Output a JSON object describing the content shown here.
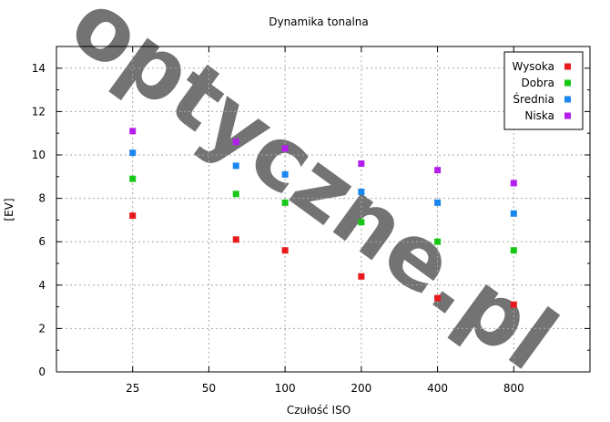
{
  "chart_data": {
    "type": "scatter",
    "title": "Dynamika tonalna",
    "xlabel": "Czułość ISO",
    "ylabel": "[EV]",
    "watermark": "optyczne.pl",
    "x_ticks": [
      25,
      50,
      100,
      200,
      400,
      800
    ],
    "x_scale": "log2",
    "xlim": [
      12.5,
      1600
    ],
    "ylim": [
      0,
      15
    ],
    "y_ticks": [
      0,
      2,
      4,
      6,
      8,
      10,
      12,
      14
    ],
    "grid": true,
    "legend_position": "top-right",
    "series": [
      {
        "name": "Wysoka",
        "color": "#e8191c",
        "points": [
          [
            25,
            7.2
          ],
          [
            64,
            6.1
          ],
          [
            100,
            5.6
          ],
          [
            200,
            4.4
          ],
          [
            400,
            3.4
          ],
          [
            800,
            3.1
          ]
        ]
      },
      {
        "name": "Dobra",
        "color": "#16c716",
        "points": [
          [
            25,
            8.9
          ],
          [
            64,
            8.2
          ],
          [
            100,
            7.8
          ],
          [
            200,
            6.9
          ],
          [
            400,
            6.0
          ],
          [
            800,
            5.6
          ]
        ]
      },
      {
        "name": "Średnia",
        "color": "#1a86f0",
        "points": [
          [
            25,
            10.1
          ],
          [
            64,
            9.5
          ],
          [
            100,
            9.1
          ],
          [
            200,
            8.3
          ],
          [
            400,
            7.8
          ],
          [
            800,
            7.3
          ]
        ]
      },
      {
        "name": "Niska",
        "color": "#b31eec",
        "points": [
          [
            25,
            11.1
          ],
          [
            64,
            10.6
          ],
          [
            100,
            10.3
          ],
          [
            200,
            9.6
          ],
          [
            400,
            9.3
          ],
          [
            800,
            8.7
          ]
        ]
      }
    ]
  }
}
